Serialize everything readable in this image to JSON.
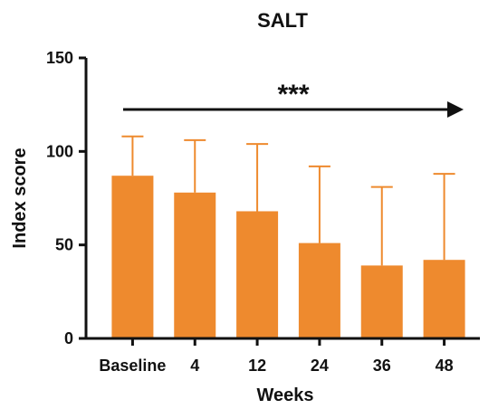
{
  "chart_data": {
    "type": "bar",
    "title": "SALT",
    "xlabel": "Weeks",
    "ylabel": "Index score",
    "categories": [
      "Baseline",
      "4",
      "12",
      "24",
      "36",
      "48"
    ],
    "values": [
      87,
      78,
      68,
      51,
      39,
      42
    ],
    "error_upper": [
      108,
      106,
      104,
      92,
      81,
      88
    ],
    "ylim": [
      0,
      150
    ],
    "yticks": [
      "0",
      "50",
      "100",
      "150"
    ],
    "significance": "***",
    "colors": {
      "bar": "#ee8a2e",
      "error": "#ee8a2e",
      "axis": "#111111"
    },
    "grid": false
  }
}
